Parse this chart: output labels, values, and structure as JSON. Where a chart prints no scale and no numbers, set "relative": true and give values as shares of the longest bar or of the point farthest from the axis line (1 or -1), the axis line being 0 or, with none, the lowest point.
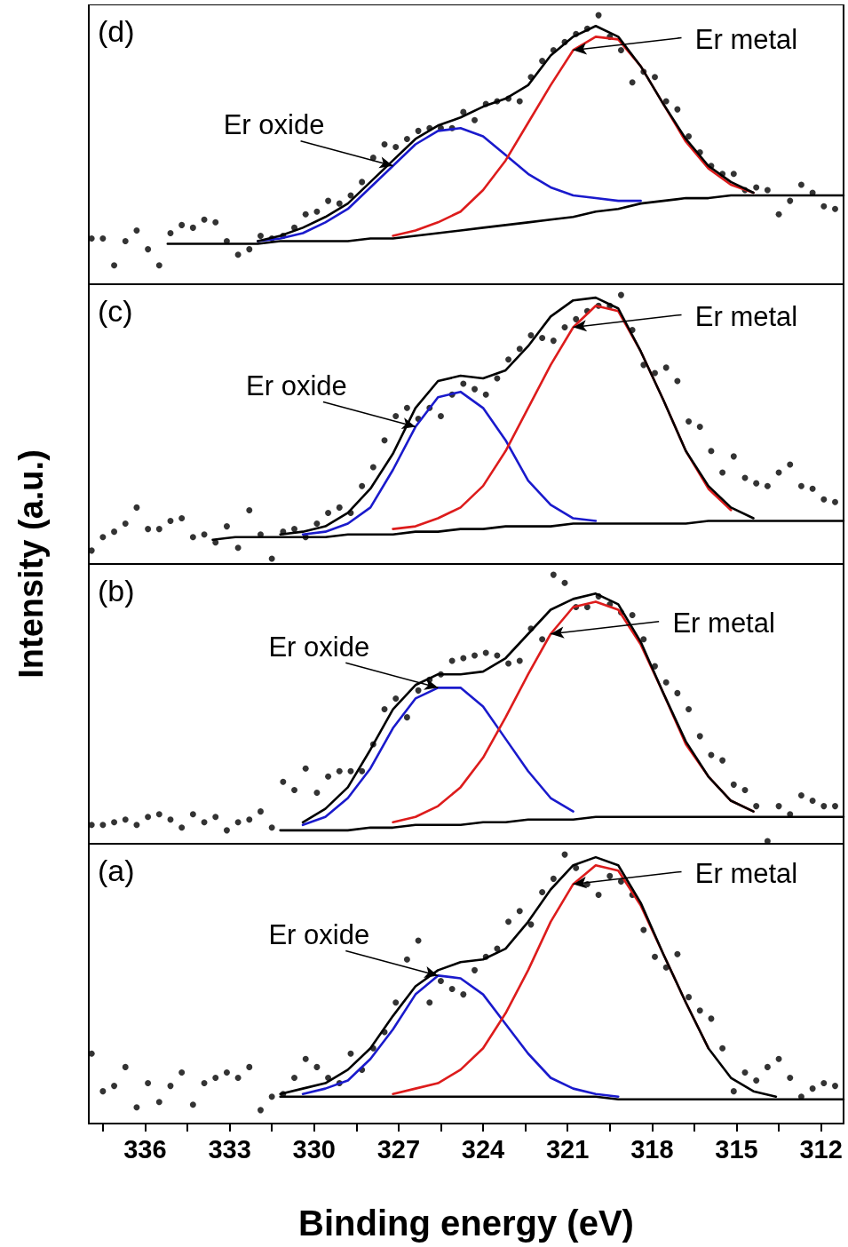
{
  "chart_data": [
    {
      "type": "line",
      "title": "(d)",
      "relative": true,
      "xlim": [
        338,
        311.2
      ],
      "tick_labels": false,
      "line_style": "solid",
      "x": [
        337.9,
        337.5,
        337.1,
        336.7,
        336.3,
        335.9,
        335.5,
        335.1,
        334.7,
        334.3,
        333.9,
        333.5,
        333.1,
        332.7,
        332.3,
        331.9,
        331.5,
        331.1,
        330.7,
        330.3,
        329.9,
        329.5,
        329.1,
        328.7,
        328.3,
        327.9,
        327.5,
        327.1,
        326.7,
        326.3,
        325.9,
        325.5,
        325.1,
        324.7,
        324.3,
        323.9,
        323.5,
        323.1,
        322.7,
        322.3,
        321.9,
        321.5,
        321.1,
        320.7,
        320.3,
        319.9,
        319.5,
        319.1,
        318.7,
        318.3,
        317.9,
        317.5,
        317.1,
        316.7,
        316.3,
        315.9,
        315.5,
        315.1,
        314.7,
        314.3,
        313.9,
        313.5,
        313.1,
        312.7,
        312.3,
        311.9,
        311.5
      ],
      "series": [
        {
          "type": "scatter",
          "marker": "circle",
          "color": "#000000",
          "values": [
            0.17,
            0.17,
            0.07,
            0.16,
            0.2,
            0.13,
            0.07,
            0.19,
            0.22,
            0.21,
            0.24,
            0.23,
            0.16,
            0.11,
            0.13,
            0.18,
            0.17,
            0.18,
            0.21,
            0.26,
            0.27,
            0.31,
            0.3,
            0.33,
            0.38,
            0.47,
            0.52,
            0.51,
            0.54,
            0.57,
            0.58,
            0.58,
            0.58,
            0.64,
            0.61,
            0.67,
            0.68,
            0.69,
            0.68,
            0.77,
            0.83,
            0.87,
            0.9,
            0.93,
            0.95,
            1,
            0.92,
            0.87,
            0.75,
            0.79,
            0.77,
            0.68,
            0.65,
            0.55,
            0.49,
            0.44,
            0.41,
            0.41,
            0.35,
            0.36,
            0.35,
            0.26,
            0.31,
            0.37,
            0.34,
            0.29,
            0.28
          ]
        },
        {
          "color": "#000000",
          "x": [
            335.2,
            334.4,
            333.6,
            332.8,
            332.0,
            331.2,
            330.4,
            329.6,
            328.8,
            328.0,
            327.2,
            326.4,
            325.6,
            324.8,
            324.0,
            323.2,
            322.4,
            321.6,
            320.8,
            320.0,
            319.2,
            318.4,
            317.6,
            316.8,
            316.0,
            315.2,
            314.4,
            313.6,
            312.8,
            312.0,
            311.2
          ],
          "values": [
            0.15,
            0.15,
            0.15,
            0.15,
            0.15,
            0.16,
            0.16,
            0.16,
            0.16,
            0.17,
            0.17,
            0.18,
            0.19,
            0.2,
            0.21,
            0.22,
            0.23,
            0.24,
            0.25,
            0.27,
            0.28,
            0.3,
            0.31,
            0.32,
            0.32,
            0.33,
            0.33,
            0.33,
            0.33,
            0.33,
            0.33
          ]
        },
        {
          "color": "#1a1acc",
          "x": [
            332.0,
            331.2,
            330.4,
            329.6,
            328.8,
            328.0,
            327.2,
            326.4,
            325.6,
            324.8,
            324.0,
            323.2,
            322.4,
            321.6,
            320.8,
            320.0,
            319.2,
            318.4
          ],
          "values": [
            0.16,
            0.17,
            0.19,
            0.23,
            0.28,
            0.36,
            0.44,
            0.52,
            0.57,
            0.58,
            0.55,
            0.48,
            0.41,
            0.36,
            0.33,
            0.32,
            0.31,
            0.31
          ]
        },
        {
          "color": "#dd1c1c",
          "x": [
            327.2,
            326.4,
            325.6,
            324.8,
            324.0,
            323.2,
            322.4,
            321.6,
            320.8,
            320.0,
            319.2,
            318.4,
            317.6,
            316.8,
            316.0,
            315.2,
            314.4
          ],
          "values": [
            0.18,
            0.2,
            0.23,
            0.27,
            0.35,
            0.46,
            0.6,
            0.74,
            0.87,
            0.92,
            0.91,
            0.81,
            0.67,
            0.53,
            0.43,
            0.37,
            0.34
          ]
        },
        {
          "color": "#000000",
          "x": [
            332.0,
            331.2,
            330.4,
            329.6,
            328.8,
            328.0,
            327.2,
            326.4,
            325.6,
            324.8,
            324.0,
            323.2,
            322.4,
            321.6,
            320.8,
            320.0,
            319.2,
            318.4,
            317.6,
            316.8,
            316.0,
            315.2,
            314.4
          ],
          "values": [
            0.16,
            0.18,
            0.21,
            0.25,
            0.3,
            0.38,
            0.46,
            0.54,
            0.59,
            0.62,
            0.66,
            0.69,
            0.74,
            0.85,
            0.92,
            0.96,
            0.92,
            0.81,
            0.67,
            0.54,
            0.44,
            0.38,
            0.34
          ]
        }
      ],
      "annotations": [
        {
          "text": "Er metal",
          "x": 320.8,
          "y": 0.87
        },
        {
          "text": "Er oxide",
          "x": 327.2,
          "y": 0.44
        }
      ]
    },
    {
      "type": "line",
      "title": "(c)",
      "ylabel": "Intensity (a.u.)",
      "relative": true,
      "xlim": [
        338,
        311.2
      ],
      "tick_labels": false,
      "line_style": "solid",
      "x": [
        337.9,
        337.5,
        337.1,
        336.7,
        336.3,
        335.9,
        335.5,
        335.1,
        334.7,
        334.3,
        333.9,
        333.5,
        333.1,
        332.7,
        332.3,
        331.9,
        331.5,
        331.1,
        330.7,
        330.3,
        329.9,
        329.5,
        329.1,
        328.7,
        328.3,
        327.9,
        327.5,
        327.1,
        326.7,
        326.3,
        325.9,
        325.5,
        325.1,
        324.7,
        324.3,
        323.9,
        323.5,
        323.1,
        322.7,
        322.3,
        321.9,
        321.5,
        321.1,
        320.7,
        320.3,
        319.9,
        319.5,
        319.1,
        318.7,
        318.3,
        317.9,
        317.5,
        317.1,
        316.7,
        316.3,
        315.9,
        315.5,
        315.1,
        314.7,
        314.3,
        313.9,
        313.5,
        313.1,
        312.7,
        312.3,
        311.9,
        311.5
      ],
      "series": [
        {
          "type": "scatter",
          "marker": "circle",
          "color": "#000000",
          "values": [
            0.05,
            0.1,
            0.12,
            0.15,
            0.21,
            0.13,
            0.13,
            0.16,
            0.17,
            0.1,
            0.11,
            0.08,
            0.14,
            0.06,
            0.2,
            0.11,
            0.02,
            0.12,
            0.13,
            0.1,
            0.15,
            0.19,
            0.21,
            0.19,
            0.29,
            0.36,
            0.46,
            0.55,
            0.58,
            0.54,
            0.58,
            0.55,
            0.63,
            0.67,
            0.65,
            0.63,
            0.69,
            0.76,
            0.8,
            0.85,
            0.84,
            0.83,
            0.88,
            0.91,
            0.94,
            0.96,
            0.96,
            1,
            0.87,
            0.74,
            0.71,
            0.73,
            0.68,
            0.53,
            0.51,
            0.42,
            0.34,
            0.4,
            0.32,
            0.3,
            0.29,
            0.34,
            0.37,
            0.29,
            0.28,
            0.24,
            0.23
          ]
        },
        {
          "color": "#000000",
          "x": [
            333.6,
            332.8,
            332.0,
            331.2,
            330.4,
            329.6,
            328.8,
            328.0,
            327.2,
            326.4,
            325.6,
            324.8,
            324.0,
            323.2,
            322.4,
            321.6,
            320.8,
            320.0,
            319.2,
            318.4,
            317.6,
            316.8,
            316.0,
            315.2,
            314.4,
            313.6,
            312.8,
            312.0,
            311.2
          ],
          "values": [
            0.09,
            0.1,
            0.1,
            0.1,
            0.1,
            0.1,
            0.11,
            0.11,
            0.11,
            0.12,
            0.12,
            0.13,
            0.13,
            0.14,
            0.14,
            0.14,
            0.15,
            0.15,
            0.15,
            0.15,
            0.15,
            0.15,
            0.16,
            0.16,
            0.16,
            0.16,
            0.16,
            0.16,
            0.16
          ]
        },
        {
          "color": "#1a1acc",
          "x": [
            330.4,
            329.6,
            328.8,
            328.0,
            327.2,
            326.4,
            325.6,
            324.8,
            324.0,
            323.2,
            322.4,
            321.6,
            320.8,
            320.0
          ],
          "values": [
            0.11,
            0.12,
            0.15,
            0.21,
            0.35,
            0.51,
            0.62,
            0.64,
            0.58,
            0.46,
            0.31,
            0.22,
            0.17,
            0.16
          ]
        },
        {
          "color": "#dd1c1c",
          "x": [
            327.2,
            326.4,
            325.6,
            324.8,
            324.0,
            323.2,
            322.4,
            321.6,
            320.8,
            320.0,
            319.2,
            318.4,
            317.6,
            316.8,
            316.0,
            315.2
          ],
          "values": [
            0.13,
            0.14,
            0.17,
            0.21,
            0.29,
            0.42,
            0.58,
            0.74,
            0.88,
            0.96,
            0.94,
            0.79,
            0.61,
            0.42,
            0.28,
            0.2
          ]
        },
        {
          "color": "#000000",
          "x": [
            331.2,
            330.4,
            329.6,
            328.8,
            328.0,
            327.2,
            326.4,
            325.6,
            324.8,
            324.0,
            323.2,
            322.4,
            321.6,
            320.8,
            320.0,
            319.2,
            318.4,
            317.6,
            316.8,
            316.0,
            315.2,
            314.4
          ],
          "values": [
            0.11,
            0.12,
            0.14,
            0.19,
            0.28,
            0.41,
            0.58,
            0.68,
            0.7,
            0.69,
            0.72,
            0.81,
            0.92,
            0.98,
            0.99,
            0.95,
            0.79,
            0.61,
            0.42,
            0.29,
            0.21,
            0.17
          ]
        }
      ],
      "annotations": [
        {
          "text": "Er metal",
          "x": 320.8,
          "y": 0.88
        },
        {
          "text": "Er oxide",
          "x": 326.4,
          "y": 0.51
        }
      ]
    },
    {
      "type": "line",
      "title": "(b)",
      "relative": true,
      "xlim": [
        338,
        311.2
      ],
      "tick_labels": false,
      "line_style": "solid",
      "x": [
        337.9,
        337.5,
        337.1,
        336.7,
        336.3,
        335.9,
        335.5,
        335.1,
        334.7,
        334.3,
        333.9,
        333.5,
        333.1,
        332.7,
        332.3,
        331.9,
        331.5,
        331.1,
        330.7,
        330.3,
        329.9,
        329.5,
        329.1,
        328.7,
        328.3,
        327.9,
        327.5,
        327.1,
        326.7,
        326.3,
        325.9,
        325.5,
        325.1,
        324.7,
        324.3,
        323.9,
        323.5,
        323.1,
        322.7,
        322.3,
        321.9,
        321.5,
        321.1,
        320.7,
        320.3,
        319.9,
        319.5,
        319.1,
        318.7,
        318.3,
        317.9,
        317.5,
        317.1,
        316.7,
        316.3,
        315.9,
        315.5,
        315.1,
        314.7,
        314.3,
        313.9,
        313.5,
        313.1,
        312.7,
        312.3,
        311.9,
        311.5
      ],
      "series": [
        {
          "type": "scatter",
          "marker": "circle",
          "color": "#000000",
          "values": [
            0.07,
            0.07,
            0.08,
            0.09,
            0.07,
            0.1,
            0.11,
            0.09,
            0.06,
            0.11,
            0.08,
            0.1,
            0.05,
            0.08,
            0.09,
            0.12,
            0.06,
            0.23,
            0.2,
            0.28,
            0.19,
            0.25,
            0.27,
            0.27,
            0.27,
            0.37,
            0.5,
            0.54,
            0.47,
            0.57,
            0.61,
            0.63,
            0.68,
            0.69,
            0.7,
            0.71,
            0.7,
            0.67,
            0.68,
            0.8,
            0.76,
            1,
            0.97,
            0.88,
            0.88,
            0.92,
            0.89,
            0.86,
            0.85,
            0.76,
            0.66,
            0.6,
            0.56,
            0.5,
            0.4,
            0.33,
            0.31,
            0.22,
            0.2,
            0.14,
            0.01,
            0.14,
            0.11,
            0.18,
            0.16,
            0.14,
            0.14
          ]
        },
        {
          "color": "#000000",
          "x": [
            331.2,
            330.4,
            329.6,
            328.8,
            328.0,
            327.2,
            326.4,
            325.6,
            324.8,
            324.0,
            323.2,
            322.4,
            321.6,
            320.8,
            320.0,
            319.2,
            318.4,
            317.6,
            316.8,
            316.0,
            315.2,
            314.4,
            313.6,
            312.8,
            312.0,
            311.2
          ],
          "values": [
            0.05,
            0.05,
            0.05,
            0.05,
            0.06,
            0.06,
            0.07,
            0.07,
            0.07,
            0.08,
            0.08,
            0.09,
            0.09,
            0.09,
            0.1,
            0.1,
            0.1,
            0.1,
            0.1,
            0.1,
            0.1,
            0.1,
            0.1,
            0.1,
            0.1,
            0.1
          ]
        },
        {
          "color": "#1a1acc",
          "x": [
            330.4,
            329.6,
            328.8,
            328.0,
            327.2,
            326.4,
            325.6,
            324.8,
            324.0,
            323.2,
            322.4,
            321.6,
            320.8
          ],
          "values": [
            0.07,
            0.1,
            0.17,
            0.28,
            0.43,
            0.54,
            0.58,
            0.58,
            0.51,
            0.39,
            0.27,
            0.17,
            0.12
          ]
        },
        {
          "color": "#dd1c1c",
          "x": [
            327.2,
            326.4,
            325.6,
            324.8,
            324.0,
            323.2,
            322.4,
            321.6,
            320.8,
            320.0,
            319.2,
            318.4,
            317.6,
            316.8,
            316.0,
            315.2,
            314.4
          ],
          "values": [
            0.08,
            0.1,
            0.14,
            0.21,
            0.32,
            0.47,
            0.63,
            0.78,
            0.88,
            0.9,
            0.87,
            0.74,
            0.56,
            0.37,
            0.25,
            0.16,
            0.12
          ]
        },
        {
          "color": "#000000",
          "x": [
            330.4,
            329.6,
            328.8,
            328.0,
            327.2,
            326.4,
            325.6,
            324.8,
            324.0,
            323.2,
            322.4,
            321.6,
            320.8,
            320.0,
            319.2,
            318.4,
            317.6,
            316.8,
            316.0,
            315.2,
            314.4
          ],
          "values": [
            0.08,
            0.13,
            0.21,
            0.35,
            0.5,
            0.59,
            0.63,
            0.63,
            0.64,
            0.69,
            0.78,
            0.87,
            0.91,
            0.93,
            0.89,
            0.75,
            0.56,
            0.38,
            0.25,
            0.16,
            0.12
          ]
        }
      ],
      "annotations": [
        {
          "text": "Er metal",
          "x": 321.6,
          "y": 0.78
        },
        {
          "text": "Er oxide",
          "x": 325.6,
          "y": 0.58
        }
      ]
    },
    {
      "type": "line",
      "title": "(a)",
      "xlabel": "Binding energy (eV)",
      "relative": true,
      "xlim": [
        338,
        311.2
      ],
      "tick_labels": "x",
      "line_style": "solid",
      "xticks": [
        {
          "value": 337.5,
          "label": null
        },
        336,
        {
          "value": 334.5,
          "label": null
        },
        333,
        {
          "value": 331.5,
          "label": null
        },
        330,
        {
          "value": 328.5,
          "label": null
        },
        327,
        {
          "value": 325.5,
          "label": null
        },
        324,
        {
          "value": 322.5,
          "label": null
        },
        321,
        {
          "value": 319.5,
          "label": null
        },
        318,
        {
          "value": 316.5,
          "label": null
        },
        315,
        {
          "value": 313.5,
          "label": null
        },
        312
      ],
      "x": [
        337.9,
        337.5,
        337.1,
        336.7,
        336.3,
        335.9,
        335.5,
        335.1,
        334.7,
        334.3,
        333.9,
        333.5,
        333.1,
        332.7,
        332.3,
        331.9,
        331.5,
        331.1,
        330.7,
        330.3,
        329.9,
        329.5,
        329.1,
        328.7,
        328.3,
        327.9,
        327.5,
        327.1,
        326.7,
        326.3,
        325.9,
        325.5,
        325.1,
        324.7,
        324.3,
        323.9,
        323.5,
        323.1,
        322.7,
        322.3,
        321.9,
        321.5,
        321.1,
        320.7,
        320.3,
        319.9,
        319.5,
        319.1,
        318.7,
        318.3,
        317.9,
        317.5,
        317.1,
        316.7,
        316.3,
        315.9,
        315.5,
        315.1,
        314.7,
        314.3,
        313.9,
        313.5,
        313.1,
        312.7,
        312.3,
        311.9,
        311.5
      ],
      "series": [
        {
          "type": "scatter",
          "marker": "circle",
          "color": "#000000",
          "values": [
            0.26,
            0.12,
            0.14,
            0.21,
            0.06,
            0.15,
            0.08,
            0.14,
            0.19,
            0.07,
            0.15,
            0.17,
            0.19,
            0.17,
            0.21,
            0.05,
            0.1,
            0.11,
            0.17,
            0.24,
            0.21,
            0.17,
            0.15,
            0.26,
            0.2,
            0.28,
            0.34,
            0.45,
            0.61,
            0.68,
            0.45,
            0.53,
            0.5,
            0.48,
            0.57,
            0.62,
            0.65,
            0.75,
            0.79,
            0.74,
            0.86,
            0.91,
            1,
            0.95,
            0.89,
            0.85,
            0.92,
            0.9,
            0.85,
            0.72,
            0.62,
            0.58,
            0.63,
            0.47,
            0.42,
            0.39,
            0.28,
            0.12,
            0.19,
            0.16,
            0.21,
            0.24,
            0.17,
            0.1,
            0.13,
            0.15,
            0.14
          ]
        },
        {
          "color": "#000000",
          "x": [
            331.2,
            330.4,
            329.6,
            328.8,
            328.0,
            327.2,
            326.4,
            325.6,
            324.8,
            324.0,
            323.2,
            322.4,
            321.6,
            320.8,
            320.0,
            319.2,
            318.4,
            317.6,
            316.8,
            316.0,
            315.2,
            314.4,
            313.6,
            312.8,
            312.0,
            311.2
          ],
          "values": [
            0.1,
            0.1,
            0.1,
            0.1,
            0.1,
            0.1,
            0.1,
            0.1,
            0.1,
            0.1,
            0.1,
            0.1,
            0.1,
            0.1,
            0.1,
            0.09,
            0.09,
            0.09,
            0.09,
            0.09,
            0.09,
            0.09,
            0.09,
            0.09,
            0.09,
            0.09
          ]
        },
        {
          "color": "#1a1acc",
          "x": [
            330.4,
            329.6,
            328.8,
            328.0,
            327.2,
            326.4,
            325.6,
            324.8,
            324.0,
            323.2,
            322.4,
            321.6,
            320.8,
            320.0,
            319.2
          ],
          "values": [
            0.11,
            0.13,
            0.16,
            0.24,
            0.35,
            0.48,
            0.55,
            0.54,
            0.48,
            0.37,
            0.26,
            0.17,
            0.13,
            0.11,
            0.1
          ]
        },
        {
          "color": "#dd1c1c",
          "x": [
            327.2,
            326.4,
            325.6,
            324.8,
            324.0,
            323.2,
            322.4,
            321.6,
            320.8,
            320.0,
            319.2,
            318.4,
            317.6,
            316.8,
            316.0
          ],
          "values": [
            0.11,
            0.13,
            0.15,
            0.2,
            0.28,
            0.41,
            0.57,
            0.75,
            0.89,
            0.96,
            0.94,
            0.81,
            0.63,
            0.45,
            0.28
          ]
        },
        {
          "color": "#000000",
          "x": [
            331.2,
            330.4,
            329.6,
            328.8,
            328.0,
            327.2,
            326.4,
            325.6,
            324.8,
            324.0,
            323.2,
            322.4,
            321.6,
            320.8,
            320.0,
            319.2,
            318.4,
            317.6,
            316.8,
            316.0,
            315.2,
            314.4,
            313.6
          ],
          "values": [
            0.11,
            0.13,
            0.15,
            0.2,
            0.28,
            0.4,
            0.51,
            0.57,
            0.6,
            0.61,
            0.65,
            0.75,
            0.87,
            0.96,
            0.99,
            0.96,
            0.82,
            0.63,
            0.45,
            0.28,
            0.17,
            0.12,
            0.1
          ]
        }
      ],
      "annotations": [
        {
          "text": "Er metal",
          "x": 320.8,
          "y": 0.89
        },
        {
          "text": "Er oxide",
          "x": 325.6,
          "y": 0.55
        }
      ]
    }
  ]
}
